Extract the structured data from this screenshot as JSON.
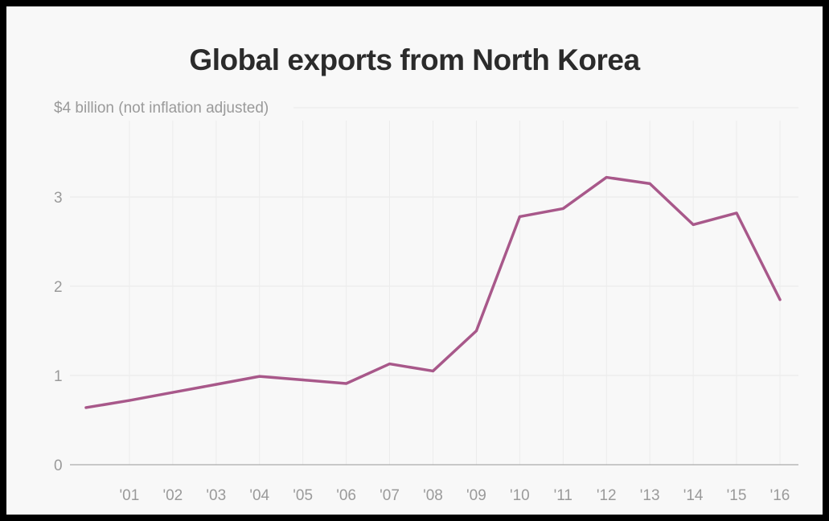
{
  "chart_data": {
    "type": "line",
    "title": "Global exports from North Korea",
    "ylabel": "$4 billion (not inflation adjusted)",
    "xlabel": "",
    "x": [
      2000,
      2001,
      2002,
      2003,
      2004,
      2005,
      2006,
      2007,
      2008,
      2009,
      2010,
      2011,
      2012,
      2013,
      2014,
      2015,
      2016
    ],
    "values": [
      0.64,
      0.72,
      0.81,
      0.9,
      0.99,
      0.95,
      0.91,
      1.13,
      1.05,
      1.5,
      2.78,
      2.87,
      3.22,
      3.15,
      2.69,
      2.82,
      1.85
    ],
    "x_tick_labels": [
      "'01",
      "'02",
      "'03",
      "'04",
      "'05",
      "'06",
      "'07",
      "'08",
      "'09",
      "'10",
      "'11",
      "'12",
      "'13",
      "'14",
      "'15",
      "'16"
    ],
    "y_tick_labels": [
      "0",
      "1",
      "2",
      "3"
    ],
    "y_ticks": [
      0,
      1,
      2,
      3
    ],
    "ylim": [
      0,
      4
    ],
    "xlim": [
      2000,
      2016
    ],
    "grid": true,
    "line_color": "#a8588a"
  }
}
